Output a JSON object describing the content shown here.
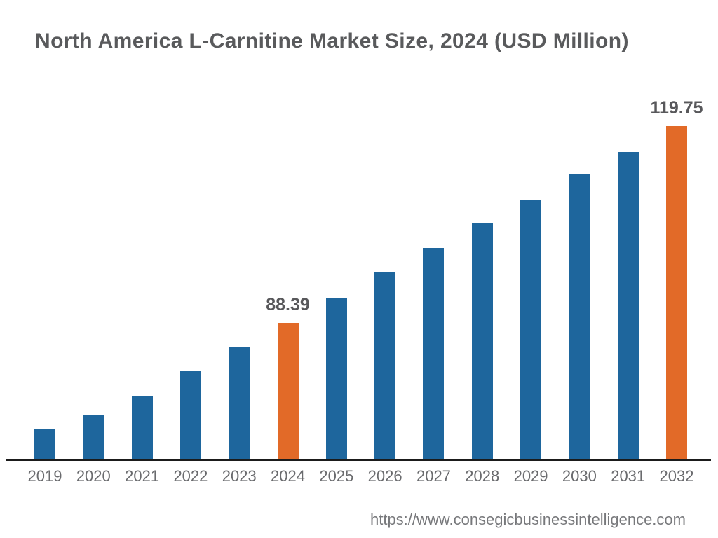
{
  "chart_data": {
    "type": "bar",
    "title": "North America L-Carnitine Market Size, 2024 (USD Million)",
    "categories": [
      "2019",
      "2020",
      "2021",
      "2022",
      "2023",
      "2024",
      "2025",
      "2026",
      "2027",
      "2028",
      "2029",
      "2030",
      "2031",
      "2032"
    ],
    "values": [
      71.4,
      73.7,
      76.6,
      80.8,
      84.6,
      88.39,
      92.4,
      96.5,
      100.3,
      104.2,
      107.9,
      112.2,
      115.6,
      119.75
    ],
    "data_labels": [
      {
        "category": "2024",
        "text": "88.39"
      },
      {
        "category": "2032",
        "text": "119.75"
      }
    ],
    "highlight_categories": [
      "2024",
      "2032"
    ],
    "colors": {
      "bar_default": "#1E669D",
      "bar_highlight": "#E26A28",
      "axis_line": "#1B1B1B",
      "title_text": "#595A5C",
      "tick_text": "#6A6B6E",
      "data_label_text": "#58585B",
      "footer_text": "#77787B"
    },
    "axes": {
      "xlabel": "",
      "ylabel": "",
      "y_axis_visible": false,
      "gridlines": false,
      "y_baseline_value": 66.6,
      "y_max_value": 119.75
    },
    "legend_visible": false
  },
  "footer": {
    "url": "https://www.consegicbusinessintelligence.com"
  }
}
